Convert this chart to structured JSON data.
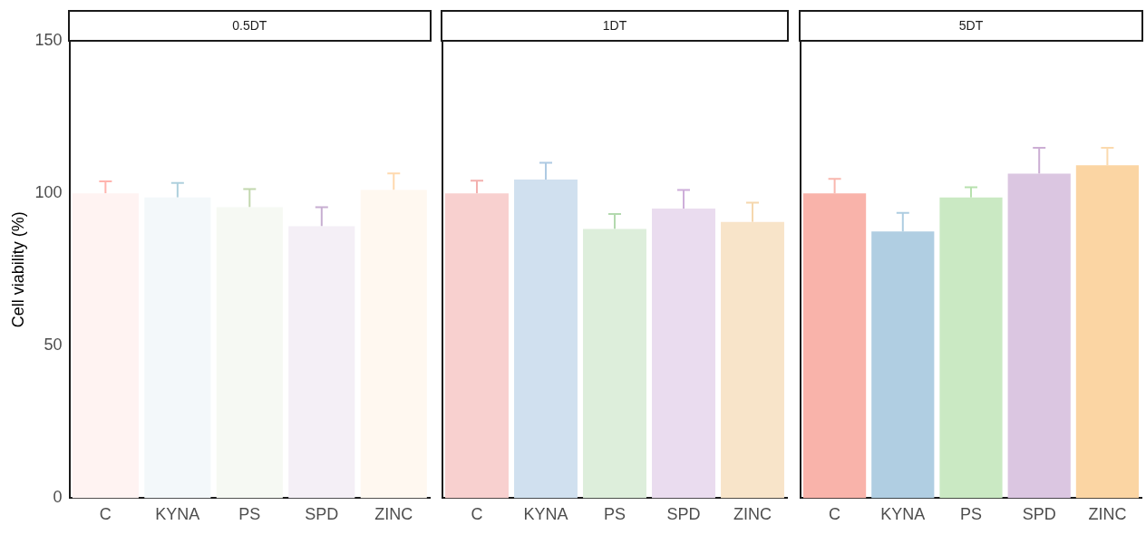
{
  "chart_data": [
    {
      "type": "bar",
      "title": "0.5DT",
      "ylabel": "Cell viability (%)",
      "categories": [
        "C",
        "KYNA",
        "PS",
        "SPD",
        "ZINC"
      ],
      "values": [
        100,
        98.6,
        95.4,
        89.2,
        101.1
      ],
      "errors": [
        [
          100,
          103.9
        ],
        [
          98.6,
          103.4
        ],
        [
          95.4,
          101.4
        ],
        [
          89.2,
          95.4
        ],
        [
          101.1,
          106.5
        ]
      ],
      "colors": [
        "#fff3f2",
        "#f3f8fa",
        "#f6f9f3",
        "#f4eff6",
        "#fff8f0"
      ],
      "ylim": [
        0,
        150
      ],
      "yticks": [
        0,
        50,
        100,
        150
      ],
      "grid": false
    },
    {
      "type": "bar",
      "title": "1DT",
      "categories": [
        "C",
        "KYNA",
        "PS",
        "SPD",
        "ZINC"
      ],
      "values": [
        100,
        104.5,
        88.3,
        95,
        90.6
      ],
      "errors": [
        [
          100,
          104.1
        ],
        [
          104.5,
          110
        ],
        [
          88.3,
          93.2
        ],
        [
          95,
          101.1
        ],
        [
          90.6,
          96.9
        ]
      ],
      "colors": [
        "#f8d0cf",
        "#d0e0ef",
        "#ddeedb",
        "#eadcef",
        "#f8e4c9"
      ],
      "ylim": [
        0,
        150
      ],
      "yticks": [
        0,
        50,
        100,
        150
      ],
      "grid": false,
      "tick_labels": "x"
    },
    {
      "type": "bar",
      "title": "5DT",
      "categories": [
        "C",
        "KYNA",
        "PS",
        "SPD",
        "ZINC"
      ],
      "values": [
        100,
        87.5,
        98.6,
        106.4,
        109.2
      ],
      "errors": [
        [
          100,
          104.7
        ],
        [
          87.5,
          93.6
        ],
        [
          98.6,
          102
        ],
        [
          106.4,
          114.9
        ],
        [
          109.2,
          114.9
        ]
      ],
      "colors": [
        "#f9b3aa",
        "#b0cee2",
        "#cae9c3",
        "#dbc6e1",
        "#fbd5a3"
      ],
      "ylim": [
        0,
        150
      ],
      "yticks": [
        0,
        50,
        100,
        150
      ],
      "grid": false,
      "tick_labels": "x"
    }
  ]
}
